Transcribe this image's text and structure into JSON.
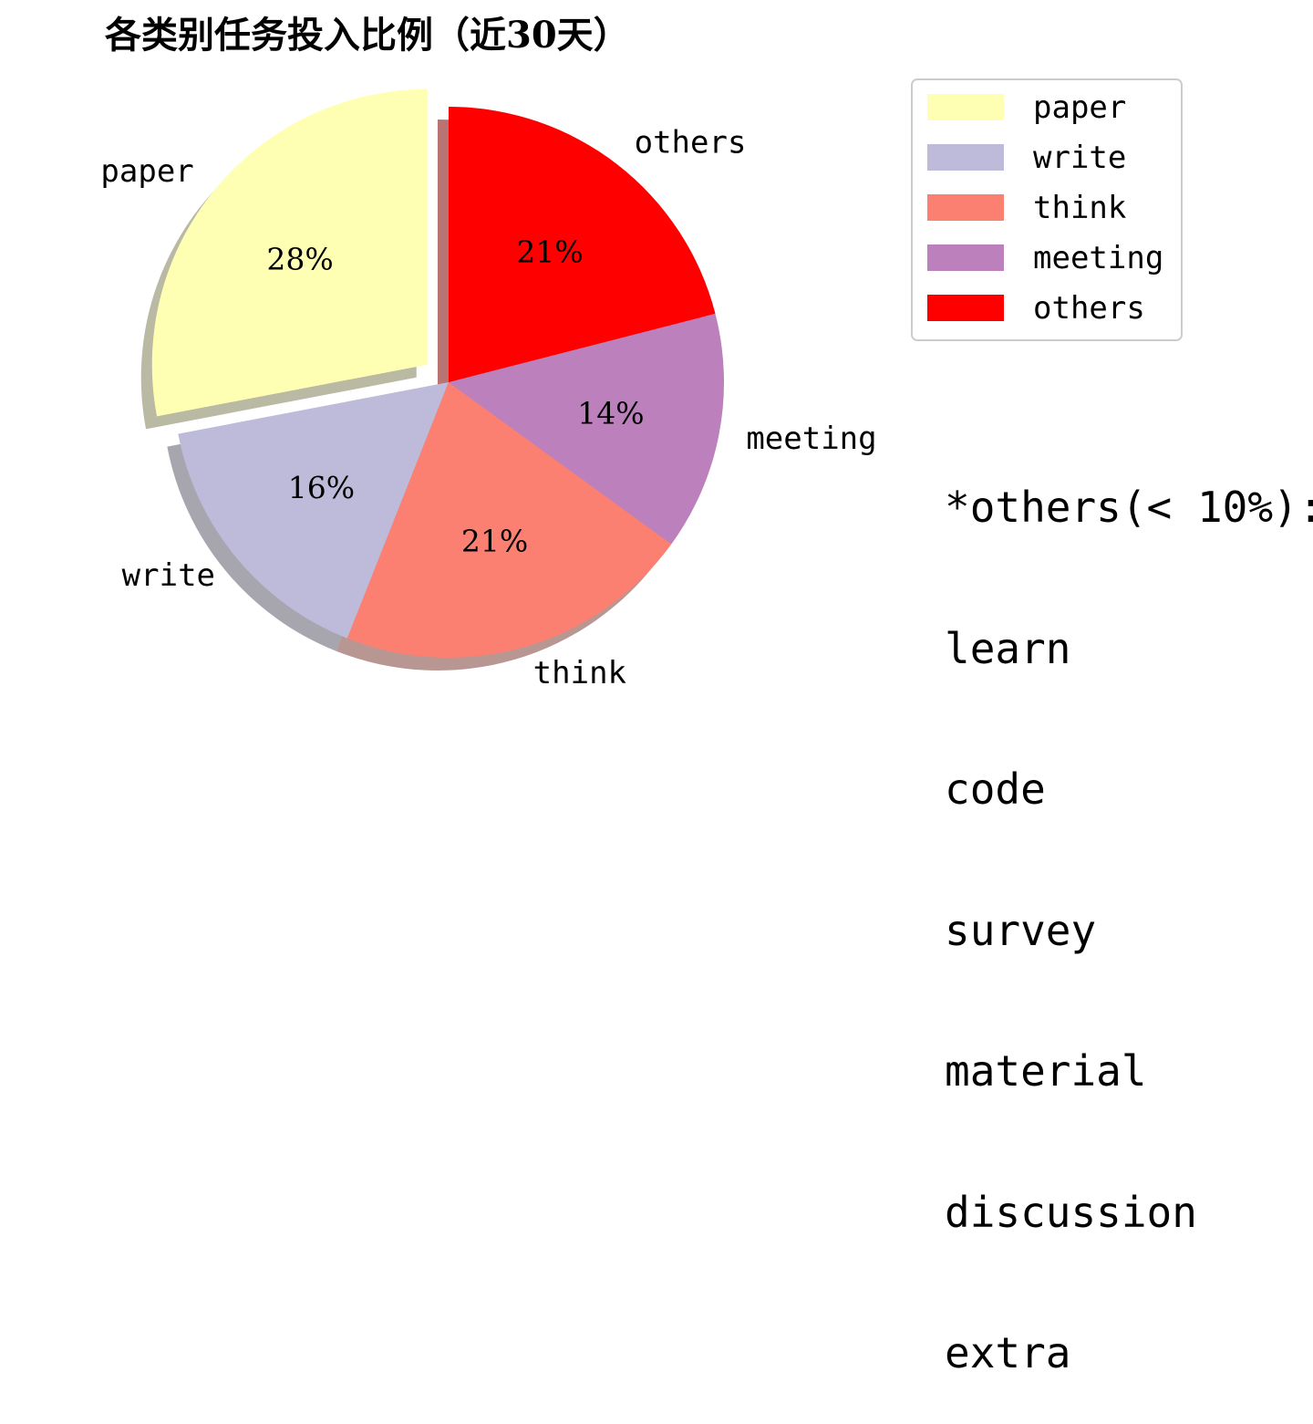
{
  "chart_data": {
    "type": "pie",
    "title": "各类别任务投入比例（近30天）",
    "slices": [
      {
        "label": "paper",
        "value": 28,
        "pct_text": "28%",
        "color": "#ffffb3",
        "explode": true
      },
      {
        "label": "write",
        "value": 16,
        "pct_text": "16%",
        "color": "#bebada",
        "explode": false
      },
      {
        "label": "think",
        "value": 21,
        "pct_text": "21%",
        "color": "#fb8072",
        "explode": false
      },
      {
        "label": "meeting",
        "value": 14,
        "pct_text": "14%",
        "color": "#bc80bd",
        "explode": false
      },
      {
        "label": "others",
        "value": 21,
        "pct_text": "21%",
        "color": "#ff0000",
        "explode": false
      }
    ],
    "start_angle_deg": 90,
    "direction": "counterclockwise",
    "shadow": true,
    "legend": {
      "placement": "top-right",
      "entries": [
        "paper",
        "write",
        "think",
        "meeting",
        "others"
      ]
    }
  },
  "note": {
    "header": "*others(< 10%):",
    "items": [
      "learn",
      "code",
      "survey",
      "material",
      "discussion",
      "extra"
    ]
  }
}
